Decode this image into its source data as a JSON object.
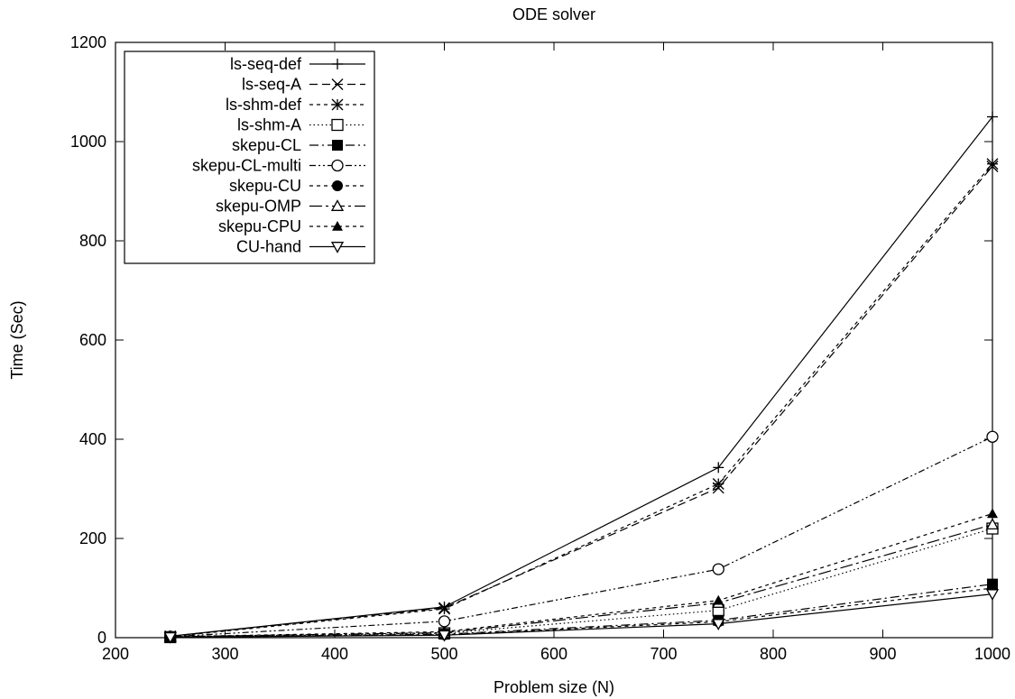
{
  "chart_data": {
    "type": "line",
    "title": "ODE solver",
    "xlabel": "Problem size (N)",
    "ylabel": "Time (Sec)",
    "xlim": [
      200,
      1000
    ],
    "ylim": [
      0,
      1200
    ],
    "x": [
      250,
      500,
      750,
      1000
    ],
    "xticks": [
      200,
      300,
      400,
      500,
      600,
      700,
      800,
      900,
      1000
    ],
    "yticks": [
      0,
      200,
      400,
      600,
      800,
      1000,
      1200
    ],
    "grid": false,
    "legend_position": "top-left",
    "series": [
      {
        "name": "ls-seq-def",
        "marker": "plus",
        "dash": "solid",
        "values": [
          3,
          62,
          343,
          1050
        ]
      },
      {
        "name": "ls-seq-A",
        "marker": "cross",
        "dash": "dashed",
        "values": [
          3,
          60,
          302,
          950
        ]
      },
      {
        "name": "ls-shm-def",
        "marker": "star",
        "dash": "short-dash",
        "values": [
          2,
          58,
          310,
          955
        ]
      },
      {
        "name": "ls-shm-A",
        "marker": "open-square",
        "dash": "dotted",
        "values": [
          1,
          9,
          55,
          220
        ]
      },
      {
        "name": "skepu-CL",
        "marker": "filled-square",
        "dash": "dash-dot",
        "values": [
          1,
          7,
          35,
          108
        ]
      },
      {
        "name": "skepu-CL-multi",
        "marker": "open-circle",
        "dash": "dash-dot-dot",
        "values": [
          2,
          33,
          138,
          405
        ]
      },
      {
        "name": "skepu-CU",
        "marker": "filled-circle",
        "dash": "short-dash",
        "values": [
          1,
          6,
          32,
          100
        ]
      },
      {
        "name": "skepu-OMP",
        "marker": "open-triangle-up",
        "dash": "long-dash-dot",
        "values": [
          2,
          10,
          70,
          228
        ]
      },
      {
        "name": "skepu-CPU",
        "marker": "filled-triangle-up",
        "dash": "short-dash",
        "values": [
          2,
          12,
          75,
          250
        ]
      },
      {
        "name": "CU-hand",
        "marker": "open-triangle-down",
        "dash": "solid",
        "values": [
          1,
          5,
          28,
          88
        ]
      }
    ]
  }
}
